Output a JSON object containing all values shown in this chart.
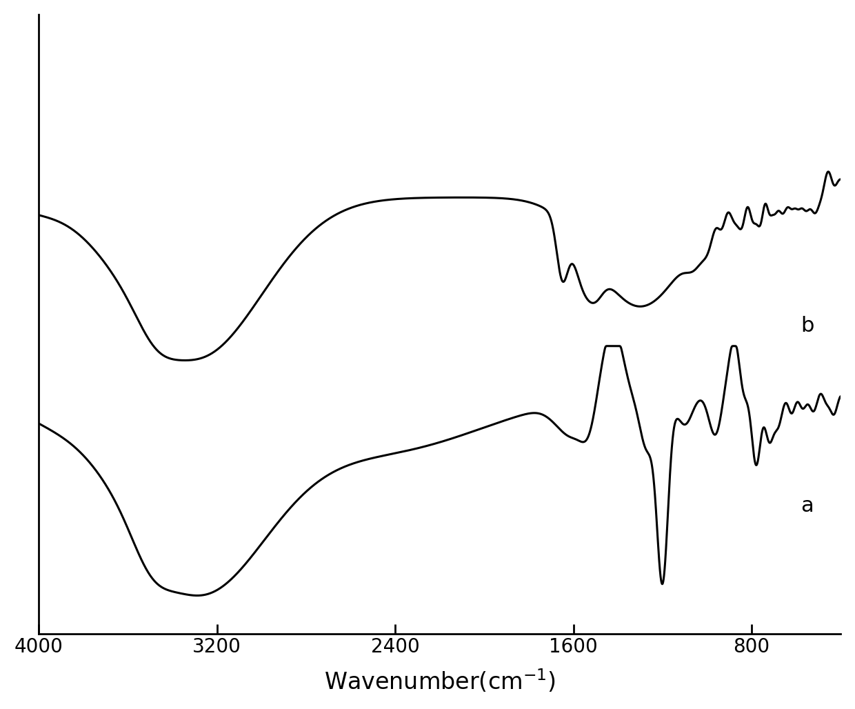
{
  "xlabel_plain": "Wavenumber(cm$^{-1}$)",
  "xmin": 400,
  "xmax": 4000,
  "line_color": "#000000",
  "label_a": "a",
  "label_b": "b",
  "background_color": "#ffffff",
  "linewidth": 2.2,
  "tick_fontsize": 20,
  "label_fontsize": 24,
  "annotation_fontsize": 22
}
